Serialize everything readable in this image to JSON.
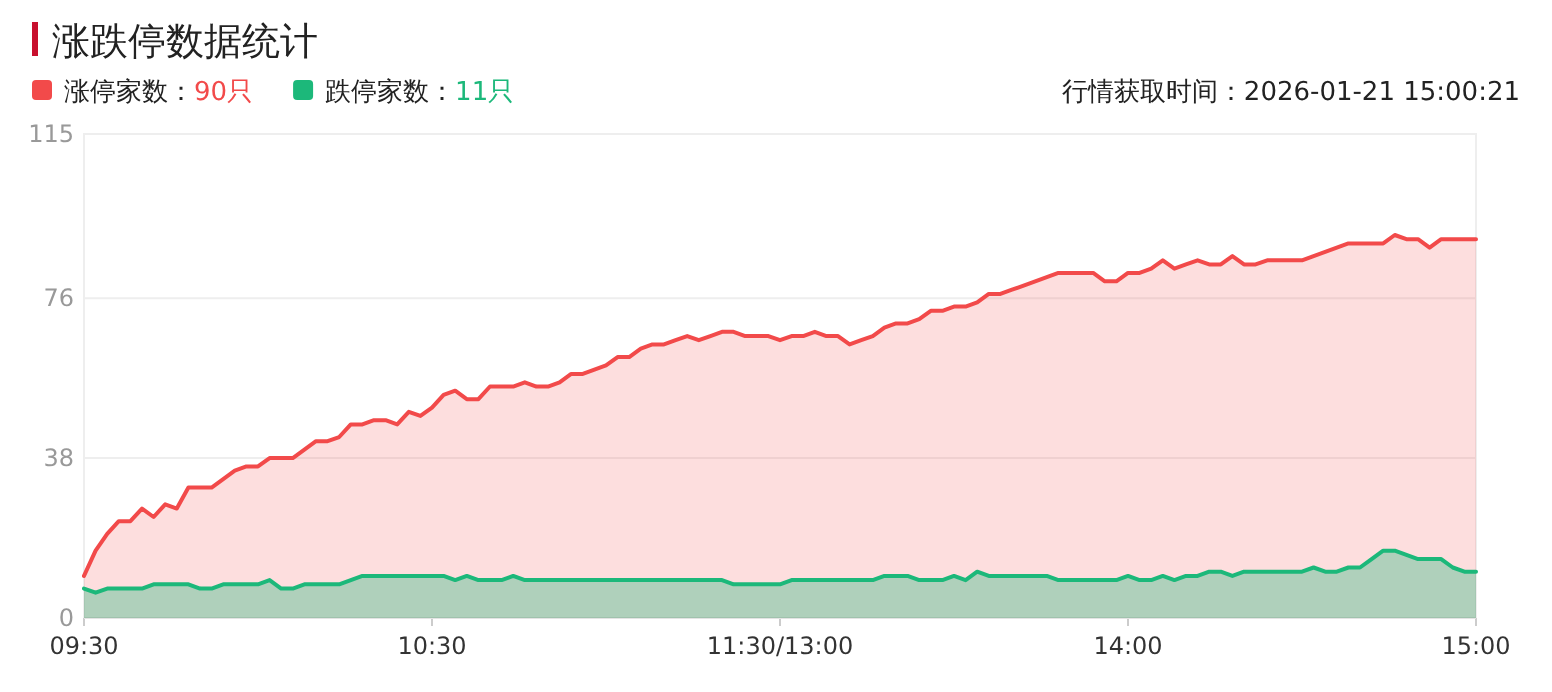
{
  "chart_data": {
    "type": "area",
    "title": "涨跌停数据统计",
    "categories": [
      "09:30",
      null,
      null,
      null,
      null,
      null,
      null,
      null,
      null,
      null,
      null,
      null,
      null,
      null,
      null,
      null,
      null,
      null,
      null,
      null,
      null,
      null,
      null,
      null,
      null,
      null,
      null,
      null,
      null,
      null,
      "10:30",
      null,
      null,
      null,
      null,
      null,
      null,
      null,
      null,
      null,
      null,
      null,
      null,
      null,
      null,
      null,
      null,
      null,
      null,
      null,
      null,
      null,
      null,
      null,
      null,
      null,
      null,
      null,
      null,
      null,
      "11:30/13:00",
      null,
      null,
      null,
      null,
      null,
      null,
      null,
      null,
      null,
      null,
      null,
      null,
      null,
      null,
      null,
      null,
      null,
      null,
      null,
      null,
      null,
      null,
      null,
      null,
      null,
      null,
      null,
      null,
      null,
      "14:00",
      null,
      null,
      null,
      null,
      null,
      null,
      null,
      null,
      null,
      null,
      null,
      null,
      null,
      null,
      null,
      null,
      null,
      null,
      null,
      null,
      null,
      null,
      null,
      null,
      null,
      null,
      null,
      null,
      null,
      "15:00"
    ],
    "ylim": [
      0,
      115
    ],
    "yticks": [
      0,
      38,
      76,
      115
    ],
    "grid": "y",
    "legend": "top left",
    "marker": "none",
    "line_style": "solid",
    "series": [
      {
        "name": "涨停家数：",
        "color": "#f24a4a",
        "values": [
          10,
          16,
          20,
          23,
          23,
          26,
          24,
          27,
          26,
          31,
          31,
          31,
          33,
          35,
          36,
          36,
          38,
          38,
          38,
          40,
          42,
          42,
          43,
          46,
          46,
          47,
          47,
          46,
          49,
          48,
          50,
          53,
          54,
          52,
          52,
          55,
          55,
          55,
          56,
          55,
          55,
          56,
          58,
          58,
          59,
          60,
          62,
          62,
          64,
          65,
          65,
          66,
          67,
          66,
          67,
          68,
          68,
          67,
          67,
          67,
          66,
          67,
          67,
          68,
          67,
          67,
          65,
          66,
          67,
          69,
          70,
          70,
          71,
          73,
          73,
          74,
          74,
          75,
          77,
          77,
          78,
          79,
          80,
          81,
          82,
          82,
          82,
          82,
          80,
          80,
          82,
          82,
          83,
          85,
          83,
          84,
          85,
          84,
          84,
          86,
          84,
          84,
          85,
          85,
          85,
          85,
          86,
          87,
          88,
          89,
          89,
          89,
          89,
          91,
          90,
          90,
          88,
          90,
          90,
          90,
          90
        ]
      },
      {
        "name": "跌停家数：",
        "color": "#1cb87a",
        "values": [
          7,
          6,
          7,
          7,
          7,
          7,
          8,
          8,
          8,
          8,
          7,
          7,
          8,
          8,
          8,
          8,
          9,
          7,
          7,
          8,
          8,
          8,
          8,
          9,
          10,
          10,
          10,
          10,
          10,
          10,
          10,
          10,
          9,
          10,
          9,
          9,
          9,
          10,
          9,
          9,
          9,
          9,
          9,
          9,
          9,
          9,
          9,
          9,
          9,
          9,
          9,
          9,
          9,
          9,
          9,
          9,
          8,
          8,
          8,
          8,
          8,
          9,
          9,
          9,
          9,
          9,
          9,
          9,
          9,
          10,
          10,
          10,
          9,
          9,
          9,
          10,
          9,
          11,
          10,
          10,
          10,
          10,
          10,
          10,
          9,
          9,
          9,
          9,
          9,
          9,
          10,
          9,
          9,
          10,
          9,
          10,
          10,
          11,
          11,
          10,
          11,
          11,
          11,
          11,
          11,
          11,
          12,
          11,
          11,
          12,
          12,
          14,
          16,
          16,
          15,
          14,
          14,
          14,
          12,
          11,
          11
        ]
      }
    ],
    "annotations": [
      "90只",
      "11只",
      "行情获取时间：2026-01-21 15:00:21"
    ]
  }
}
